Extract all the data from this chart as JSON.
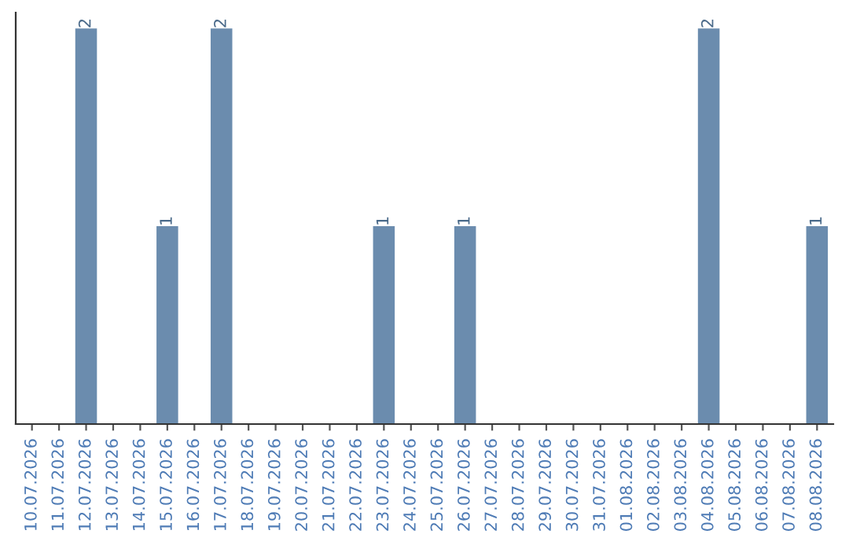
{
  "chart_data": {
    "type": "bar",
    "categories": [
      "10.07.2026",
      "11.07.2026",
      "12.07.2026",
      "13.07.2026",
      "14.07.2026",
      "15.07.2026",
      "16.07.2026",
      "17.07.2026",
      "18.07.2026",
      "19.07.2026",
      "20.07.2026",
      "21.07.2026",
      "22.07.2026",
      "23.07.2026",
      "24.07.2026",
      "25.07.2026",
      "26.07.2026",
      "27.07.2026",
      "28.07.2026",
      "29.07.2026",
      "30.07.2026",
      "31.07.2026",
      "01.08.2026",
      "02.08.2026",
      "03.08.2026",
      "04.08.2026",
      "05.08.2026",
      "06.08.2026",
      "07.08.2026",
      "08.08.2026"
    ],
    "values": [
      0,
      0,
      2,
      0,
      0,
      1,
      0,
      2,
      0,
      0,
      0,
      0,
      0,
      1,
      0,
      0,
      1,
      0,
      0,
      0,
      0,
      0,
      0,
      0,
      0,
      2,
      0,
      0,
      0,
      1
    ],
    "value_labels": [
      null,
      null,
      "2",
      null,
      null,
      "1",
      null,
      "2",
      null,
      null,
      null,
      null,
      null,
      "1",
      null,
      null,
      "1",
      null,
      null,
      null,
      null,
      null,
      null,
      null,
      null,
      "2",
      null,
      null,
      null,
      "1"
    ],
    "color": "#6b8cae",
    "ylim": [
      0,
      2.08
    ],
    "tick_labels": "x",
    "grid": false,
    "legend": false
  }
}
